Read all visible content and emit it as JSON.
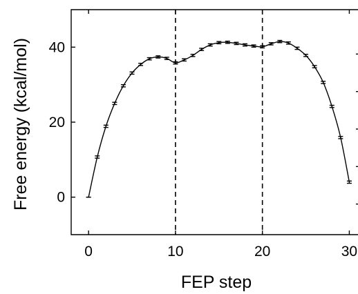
{
  "chart_data": {
    "type": "line",
    "title": "",
    "xlabel": "FEP step",
    "ylabel": "Free energy  (kcal/mol)",
    "xlim": [
      -2,
      31
    ],
    "ylim": [
      -10,
      50
    ],
    "x_ticks": [
      0,
      10,
      20,
      30
    ],
    "x_tick_labels": [
      "0",
      "10",
      "20",
      "30"
    ],
    "y_ticks": [
      0,
      20,
      40
    ],
    "y_tick_labels": [
      "0",
      "20",
      "40"
    ],
    "grid": false,
    "legend": null,
    "error_bars": true,
    "vertical_dashed_lines": [
      10,
      20
    ],
    "series": [
      {
        "x": [
          0,
          1,
          2,
          3,
          4,
          5,
          6,
          7,
          8,
          9,
          10,
          11,
          12,
          13,
          14,
          15,
          16,
          17,
          18,
          19,
          20,
          21,
          22,
          23,
          24,
          25,
          26,
          27,
          28,
          29,
          30
        ],
        "values": [
          0,
          10.7,
          18.9,
          25.0,
          29.7,
          33.1,
          35.4,
          36.9,
          37.4,
          37.0,
          35.8,
          36.6,
          37.8,
          39.4,
          40.6,
          41.2,
          41.3,
          41.0,
          40.6,
          40.3,
          40.1,
          40.9,
          41.5,
          41.1,
          39.7,
          37.8,
          34.8,
          30.6,
          24.2,
          15.9,
          4.0
        ],
        "error": [
          0,
          0.3,
          0.3,
          0.3,
          0.3,
          0.3,
          0.3,
          0.3,
          0.3,
          0.3,
          0.3,
          0.3,
          0.3,
          0.3,
          0.3,
          0.3,
          0.3,
          0.3,
          0.3,
          0.3,
          0.3,
          0.3,
          0.3,
          0.3,
          0.3,
          0.3,
          0.3,
          0.3,
          0.3,
          0.3,
          0.3
        ]
      }
    ]
  }
}
